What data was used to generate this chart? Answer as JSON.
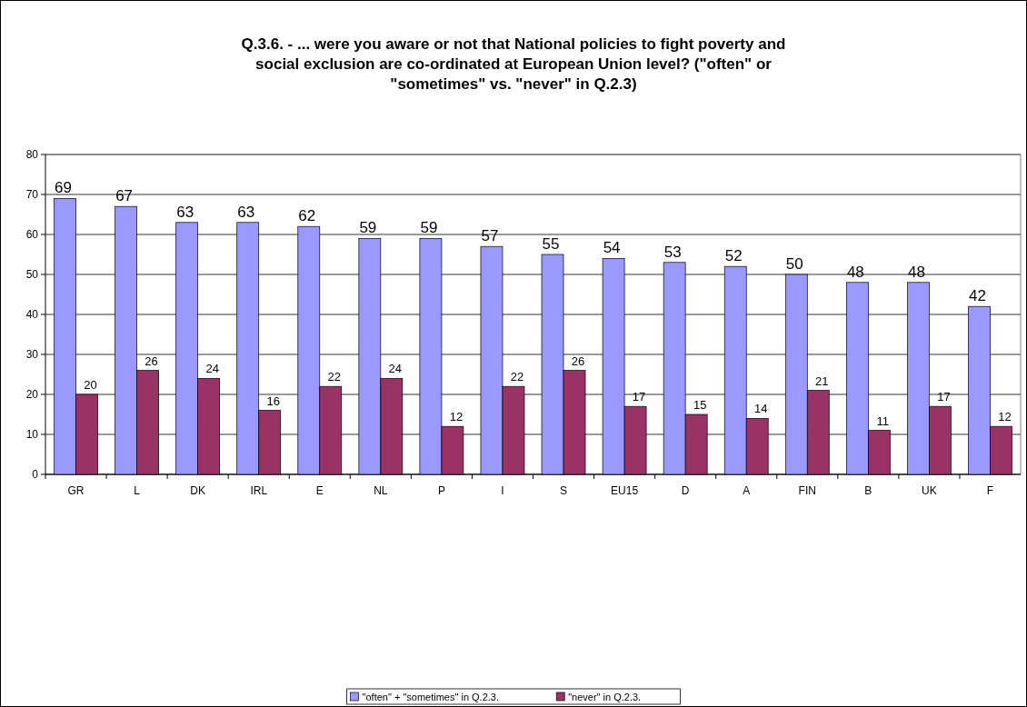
{
  "chart_data": {
    "type": "bar",
    "title": "Q.3.6. - ... were you aware or not that National policies to fight poverty and social exclusion are co-ordinated at European Union level? (\"often\" or \"sometimes\" vs. \"never\" in Q.2.3)",
    "categories": [
      "GR",
      "L",
      "DK",
      "IRL",
      "E",
      "NL",
      "P",
      "I",
      "S",
      "EU15",
      "D",
      "A",
      "FIN",
      "B",
      "UK",
      "F"
    ],
    "series": [
      {
        "name": "\"often\" + \"sometimes\" in Q.2.3.",
        "color": "#9999ff",
        "values": [
          69,
          67,
          63,
          63,
          62,
          59,
          59,
          57,
          55,
          54,
          53,
          52,
          50,
          48,
          48,
          42
        ]
      },
      {
        "name": "\"never\" in Q.2.3.",
        "color": "#993366",
        "values": [
          20,
          26,
          24,
          16,
          22,
          24,
          12,
          22,
          26,
          17,
          15,
          14,
          21,
          11,
          17,
          12
        ]
      }
    ],
    "ylim": [
      0,
      80
    ],
    "yticks": [
      0,
      10,
      20,
      30,
      40,
      50,
      60,
      70,
      80
    ],
    "grid": "y",
    "legend": "bottom",
    "data_labels": true
  }
}
